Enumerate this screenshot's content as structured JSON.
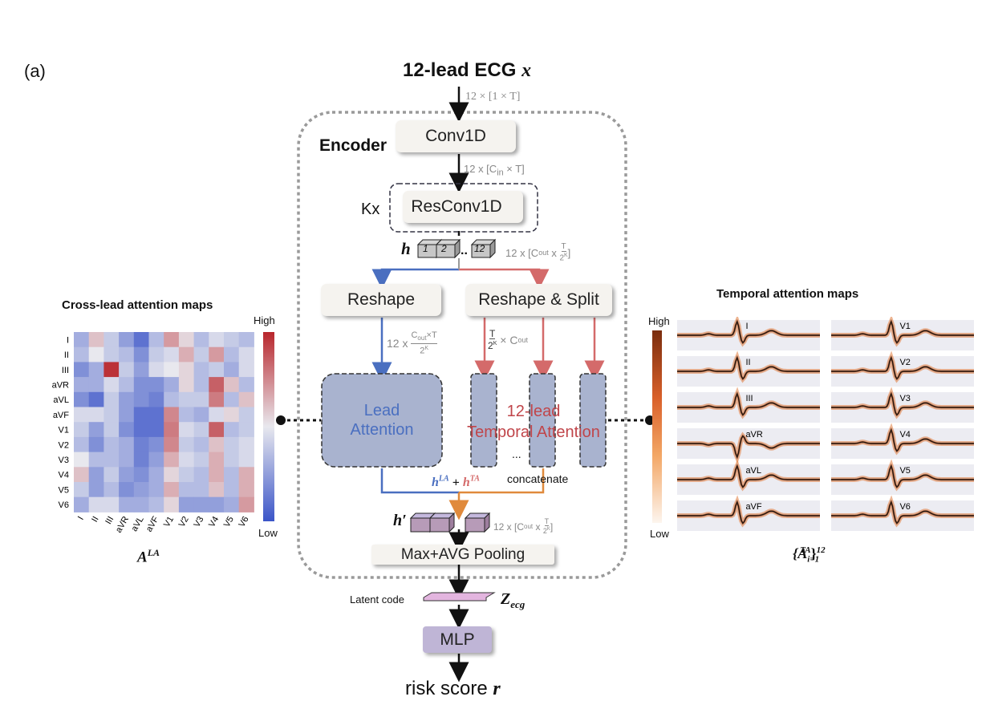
{
  "panel_label": "(a)",
  "input": {
    "title": "12-lead ECG",
    "var": "x",
    "dims": "12 × [1 × T]"
  },
  "encoder": {
    "title": "Encoder",
    "conv1d": "Conv1D",
    "conv_dims_prefix": "12 x [C",
    "conv_dims_sub": "in",
    "conv_dims_suffix": " × T]",
    "repeat": "Kx",
    "resconv": "ResConv1D",
    "h_var": "h",
    "h_blocks": [
      "1",
      "2",
      "12"
    ],
    "h_dots": "..",
    "h_dims_prefix": "12 x [C",
    "h_dims_sub": "out",
    "h_dims_mid": " x ",
    "frac_T": "T",
    "frac_2K": "2",
    "frac_K": "K",
    "reshape": "Reshape",
    "reshape_split": "Reshape & Split",
    "la_dims_prefix": "12 x",
    "la_dims_num": "C",
    "la_dims_num_sub": "out",
    "la_dims_num_suffix": "×T",
    "ta_dims_suffix": " × C",
    "ta_dims_sub": "out",
    "lead_attention": "Lead\nAttention",
    "temporal_attention": "12-lead\nTemporal Attention",
    "ellipsis": "...",
    "concatenate": "concatenate",
    "sum_la": "h",
    "sum_la_sup": "LA",
    "sum_plus": "+",
    "sum_ta": "h",
    "sum_ta_sup": "TA",
    "hprime": "h′",
    "pooling": "Max+AVG Pooling"
  },
  "latent": {
    "label": "Latent code",
    "var": "Z",
    "var_sub": "ecg"
  },
  "mlp": "MLP",
  "output": {
    "text": "risk score",
    "var": "r"
  },
  "cross_lead": {
    "title": "Cross-lead attention maps",
    "high": "High",
    "low": "Low",
    "caption": "A",
    "caption_sup": "LA",
    "leads": [
      "I",
      "II",
      "III",
      "aVR",
      "aVL",
      "aVF",
      "V1",
      "V2",
      "V3",
      "V4",
      "V5",
      "V6"
    ]
  },
  "temporal": {
    "title": "Temporal attention maps",
    "high": "High",
    "low": "Low",
    "caption": "{A",
    "caption_sub": "i=1",
    "caption_sup": "TA",
    "caption_sup2": "12",
    "col1": [
      "I",
      "II",
      "III",
      "aVR",
      "aVL",
      "aVF"
    ],
    "col2": [
      "V1",
      "V2",
      "V3",
      "V4",
      "V5",
      "V6"
    ]
  },
  "colors": {
    "blue_arrow": "#4a6fc0",
    "red_arrow": "#d46a6a",
    "orange_arrow": "#e08a3c",
    "attn_box": "#a9b3cf",
    "mlp_box": "#bfb5d6",
    "dashed_encoder": "#9a9a9a",
    "heat_high": "#b8262c",
    "heat_low": "#3b55c8"
  },
  "chart_data": {
    "type": "heatmap",
    "title": "Cross-lead attention maps",
    "rows": [
      "I",
      "II",
      "III",
      "aVR",
      "aVL",
      "aVF",
      "V1",
      "V2",
      "V3",
      "V4",
      "V5",
      "V6"
    ],
    "cols": [
      "I",
      "II",
      "III",
      "aVR",
      "aVL",
      "aVF",
      "V1",
      "V2",
      "V3",
      "V4",
      "V5",
      "V6"
    ],
    "values": [
      [
        0.3,
        0.6,
        0.4,
        0.25,
        0.1,
        0.35,
        0.7,
        0.55,
        0.35,
        0.45,
        0.4,
        0.35
      ],
      [
        0.35,
        0.5,
        0.4,
        0.35,
        0.2,
        0.4,
        0.45,
        0.65,
        0.4,
        0.7,
        0.35,
        0.45
      ],
      [
        0.2,
        0.3,
        0.97,
        0.4,
        0.25,
        0.45,
        0.5,
        0.55,
        0.35,
        0.4,
        0.3,
        0.45
      ],
      [
        0.3,
        0.3,
        0.45,
        0.35,
        0.2,
        0.2,
        0.3,
        0.55,
        0.35,
        0.85,
        0.6,
        0.35
      ],
      [
        0.2,
        0.1,
        0.4,
        0.25,
        0.2,
        0.15,
        0.35,
        0.4,
        0.4,
        0.78,
        0.35,
        0.6
      ],
      [
        0.45,
        0.45,
        0.4,
        0.25,
        0.1,
        0.1,
        0.75,
        0.35,
        0.3,
        0.45,
        0.55,
        0.4
      ],
      [
        0.4,
        0.25,
        0.4,
        0.2,
        0.1,
        0.1,
        0.78,
        0.45,
        0.4,
        0.85,
        0.35,
        0.4
      ],
      [
        0.35,
        0.2,
        0.35,
        0.3,
        0.15,
        0.2,
        0.75,
        0.4,
        0.35,
        0.6,
        0.4,
        0.45
      ],
      [
        0.5,
        0.35,
        0.35,
        0.3,
        0.15,
        0.25,
        0.65,
        0.45,
        0.4,
        0.65,
        0.4,
        0.45
      ],
      [
        0.6,
        0.25,
        0.4,
        0.25,
        0.2,
        0.3,
        0.55,
        0.4,
        0.35,
        0.65,
        0.35,
        0.65
      ],
      [
        0.4,
        0.25,
        0.35,
        0.2,
        0.25,
        0.3,
        0.65,
        0.35,
        0.35,
        0.6,
        0.35,
        0.65
      ],
      [
        0.3,
        0.45,
        0.45,
        0.3,
        0.3,
        0.35,
        0.55,
        0.25,
        0.25,
        0.25,
        0.3,
        0.7
      ]
    ],
    "colorbar": [
      "Low",
      "High"
    ]
  }
}
